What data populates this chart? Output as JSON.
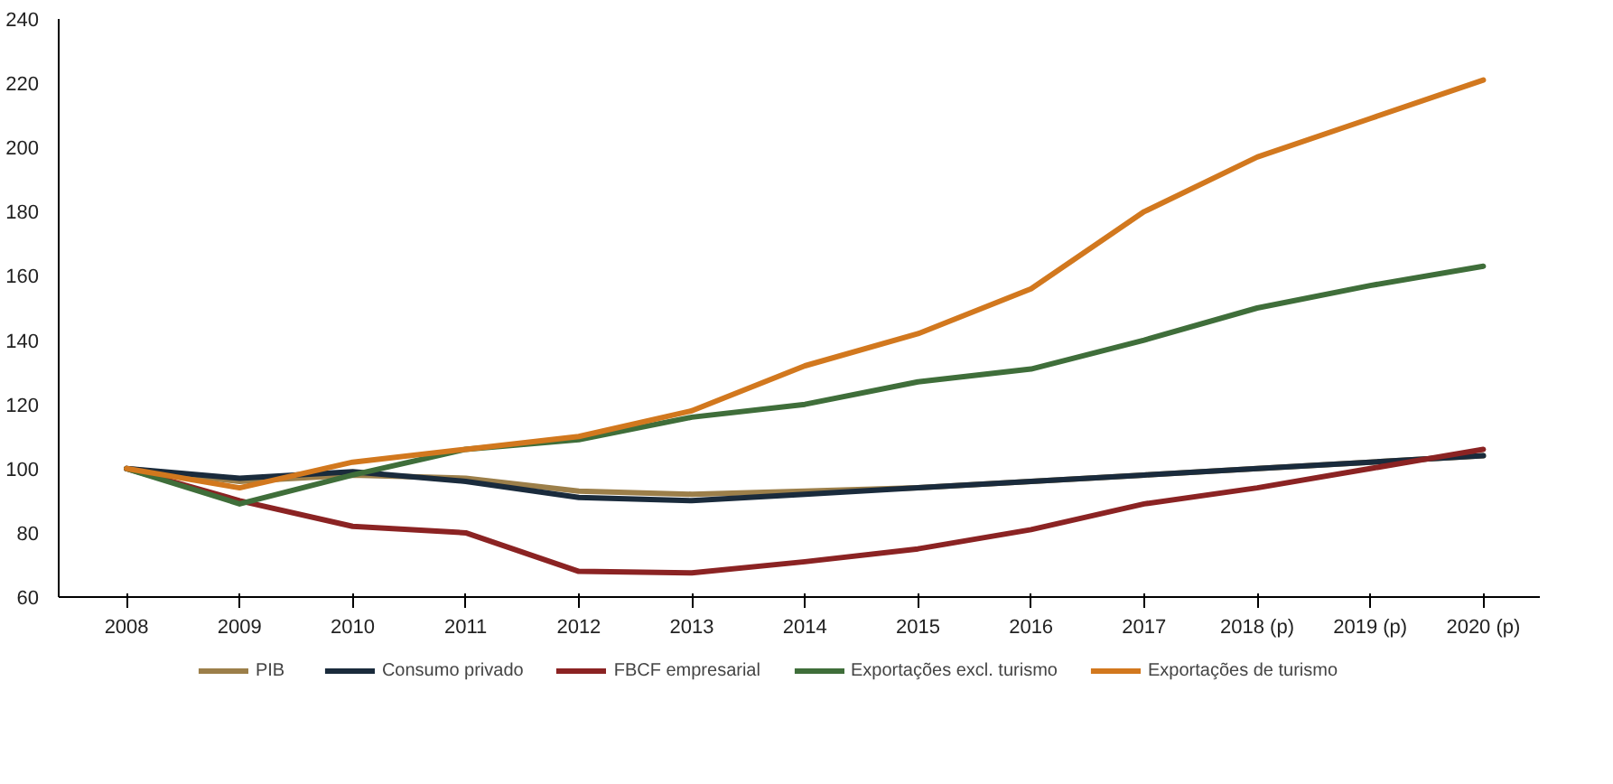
{
  "chart_data": {
    "type": "line",
    "categories": [
      "2008",
      "2009",
      "2010",
      "2011",
      "2012",
      "2013",
      "2014",
      "2015",
      "2016",
      "2017",
      "2018 (p)",
      "2019 (p)",
      "2020 (p)"
    ],
    "ylim": [
      60,
      240
    ],
    "yticks": [
      60,
      80,
      100,
      120,
      140,
      160,
      180,
      200,
      220,
      240
    ],
    "grid": false,
    "legend": "bottom",
    "marker": "none",
    "line_style": "solid",
    "series": [
      {
        "name": "PIB",
        "color": "#9c7f4a",
        "values": [
          100,
          96,
          98,
          97,
          93,
          92,
          93,
          94,
          96,
          98,
          100,
          102,
          104
        ]
      },
      {
        "name": "Consumo privado",
        "color": "#1a2b3c",
        "values": [
          100,
          97,
          99,
          96,
          91,
          90,
          92,
          94,
          96,
          98,
          100,
          102,
          104
        ]
      },
      {
        "name": "FBCF empresarial",
        "color": "#8b2323",
        "values": [
          100,
          90,
          82,
          80,
          68,
          67.5,
          71,
          75,
          81,
          89,
          94,
          100,
          106
        ]
      },
      {
        "name": "Exportações excl. turismo",
        "color": "#3f6e3a",
        "values": [
          100,
          89,
          98,
          106,
          109,
          116,
          120,
          127,
          131,
          140,
          150,
          157,
          163
        ]
      },
      {
        "name": "Exportações de turismo",
        "color": "#d2781e",
        "values": [
          100,
          94,
          102,
          106,
          110,
          118,
          132,
          142,
          156,
          180,
          197,
          209,
          221
        ]
      }
    ]
  }
}
